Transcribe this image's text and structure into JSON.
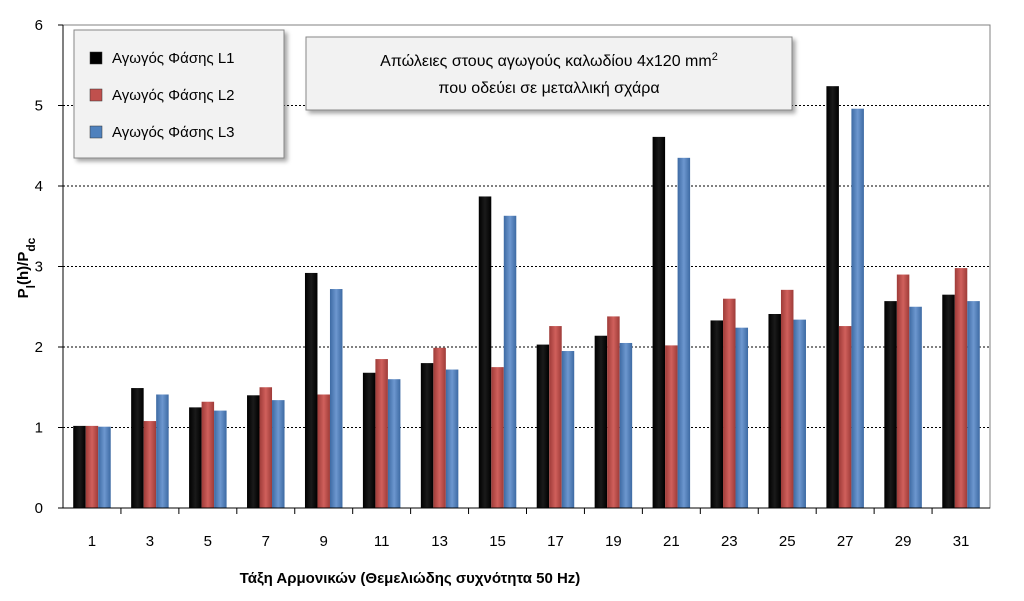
{
  "chart_data": {
    "type": "bar",
    "title": "",
    "annotation": {
      "line1_prefix": "Απώλειες στους αγωγούς καλωδίου 4x120 mm",
      "line1_sup": "2",
      "line2": "που οδεύει σε μεταλλική σχάρα"
    },
    "xlabel": "Τάξη Αρμονικών (Θεμελιώδης συχνότητα 50 Hz)",
    "ylabel": {
      "base": "P",
      "sub1": "l",
      "mid": "(h)/P",
      "sub2": "dc"
    },
    "ylim": [
      0,
      6
    ],
    "yticks": [
      "0",
      "1",
      "2",
      "3",
      "4",
      "5",
      "6"
    ],
    "categories": [
      "1",
      "3",
      "5",
      "7",
      "9",
      "11",
      "13",
      "15",
      "17",
      "19",
      "21",
      "23",
      "25",
      "27",
      "29",
      "31"
    ],
    "series": [
      {
        "name": "Αγωγός Φάσης L1",
        "color": "#000000",
        "values": [
          1.02,
          1.49,
          1.25,
          1.4,
          2.92,
          1.68,
          1.8,
          3.87,
          2.03,
          2.14,
          4.61,
          2.33,
          2.41,
          5.24,
          2.57,
          2.65
        ]
      },
      {
        "name": "Αγωγός Φάσης L2",
        "color": "#c0504d",
        "values": [
          1.02,
          1.08,
          1.32,
          1.5,
          1.41,
          1.85,
          1.99,
          1.75,
          2.26,
          2.38,
          2.02,
          2.6,
          2.71,
          2.26,
          2.9,
          2.98
        ]
      },
      {
        "name": "Αγωγός Φάσης L3",
        "color": "#4f81bd",
        "values": [
          1.01,
          1.41,
          1.21,
          1.34,
          2.72,
          1.6,
          1.72,
          3.63,
          1.95,
          2.05,
          4.35,
          2.24,
          2.34,
          4.96,
          2.5,
          2.57
        ]
      }
    ],
    "grid": "horizontal dashed",
    "legend_position": "top-left"
  }
}
